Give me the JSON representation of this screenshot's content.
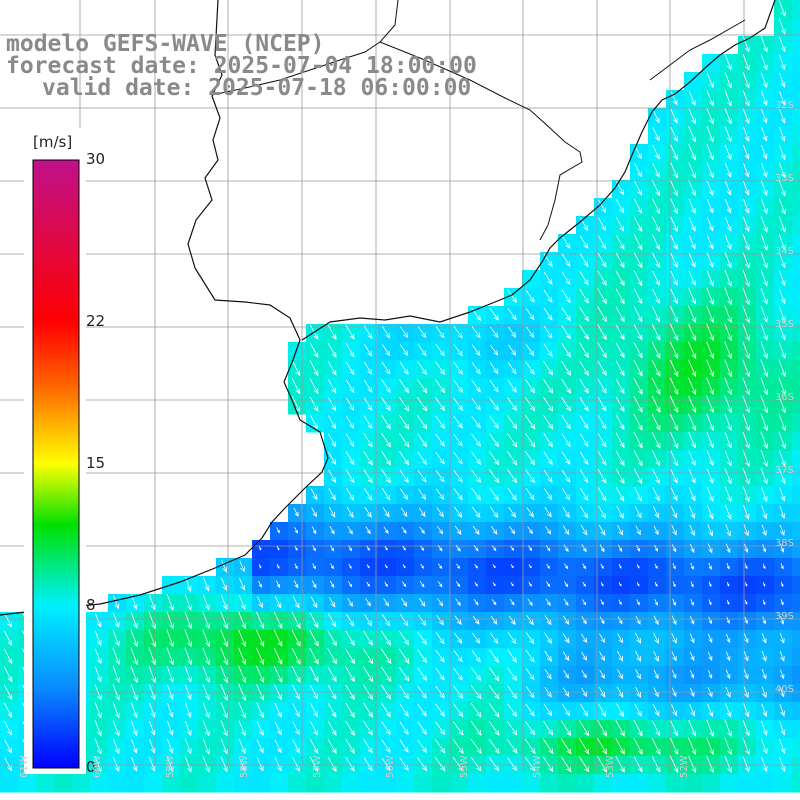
{
  "title": {
    "line1": "modelo GEFS-WAVE (NCEP)",
    "line2": "forecast date: 2025-07-04 18:00:00",
    "line3": "valid date: 2025-07-18 06:00:00"
  },
  "colorbar": {
    "unit": "[m/s]",
    "ticks": [
      "0",
      "8",
      "15",
      "22",
      "30"
    ],
    "tick_values": [
      0,
      8,
      15,
      22,
      30
    ],
    "range": [
      0,
      30
    ],
    "colors": [
      "#0000ff",
      "#0a8cff",
      "#00f0ff",
      "#00e000",
      "#ffff00",
      "#ff6000",
      "#ff0000",
      "#c0108a"
    ]
  },
  "map": {
    "latitude_labels": [
      "32S",
      "33S",
      "34S",
      "35S",
      "36S",
      "37S",
      "38S",
      "39S",
      "40S"
    ],
    "longitude_labels": [
      "61W",
      "60W",
      "59W",
      "58W",
      "57W",
      "56W",
      "55W",
      "54W",
      "53W",
      "52W"
    ],
    "land_color": "#ffffff",
    "grid_color": "#999999",
    "arrow_color": "#ffffff"
  }
}
